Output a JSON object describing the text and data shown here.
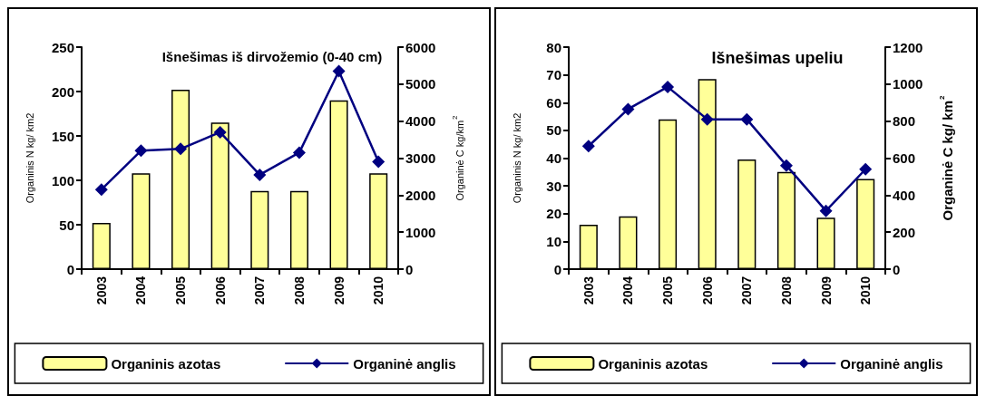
{
  "chart_data": [
    {
      "type": "bar",
      "title": "Išnešimas iš dirvožemio (0-40 cm)",
      "ylabel": "Organinis N kg/ km2",
      "y2label": "Organinė C kg/km$^{2}$",
      "categories": [
        "2003",
        "2004",
        "2005",
        "2006",
        "2007",
        "2008",
        "2009",
        "2010"
      ],
      "series": [
        {
          "name": "Organinis azotas",
          "color": "#ffff99",
          "values": [
            52,
            108,
            202,
            165,
            88,
            88,
            190,
            108
          ]
        },
        {
          "name": "Organinė anglis",
          "type": "line",
          "axis": "y2",
          "color": "#000080",
          "marker": "diamond",
          "values": [
            2150,
            3200,
            3250,
            3700,
            2550,
            3150,
            5350,
            2900
          ]
        }
      ],
      "ylim": [
        0,
        250
      ],
      "yticks": [
        0,
        50,
        100,
        150,
        200,
        250
      ],
      "y2lim": [
        0,
        6000
      ],
      "y2ticks": [
        0,
        1000,
        2000,
        3000,
        4000,
        5000,
        6000
      ],
      "grid": false,
      "legend": "bottom"
    },
    {
      "type": "bar",
      "title": "Išnešimas upeliu",
      "ylabel": "Organinis N kg/ km2",
      "y2label": "Organinė C kg/ km$^{2}$",
      "categories": [
        "2003",
        "2004",
        "2005",
        "2006",
        "2007",
        "2008",
        "2009",
        "2010"
      ],
      "series": [
        {
          "name": "Organinis azotas",
          "color": "#ffff99",
          "values": [
            16,
            19,
            54,
            68.5,
            39.5,
            35,
            18.5,
            32.5
          ]
        },
        {
          "name": "Organinė anglis",
          "type": "line",
          "axis": "y2",
          "color": "#000080",
          "marker": "diamond",
          "values": [
            665,
            865,
            985,
            810,
            810,
            560,
            315,
            540
          ]
        }
      ],
      "ylim": [
        0,
        80
      ],
      "yticks": [
        0,
        10,
        20,
        30,
        40,
        50,
        60,
        70,
        80
      ],
      "y2lim": [
        0,
        1200
      ],
      "y2ticks": [
        0,
        200,
        400,
        600,
        800,
        1000,
        1200
      ],
      "grid": false,
      "legend": "bottom"
    }
  ]
}
